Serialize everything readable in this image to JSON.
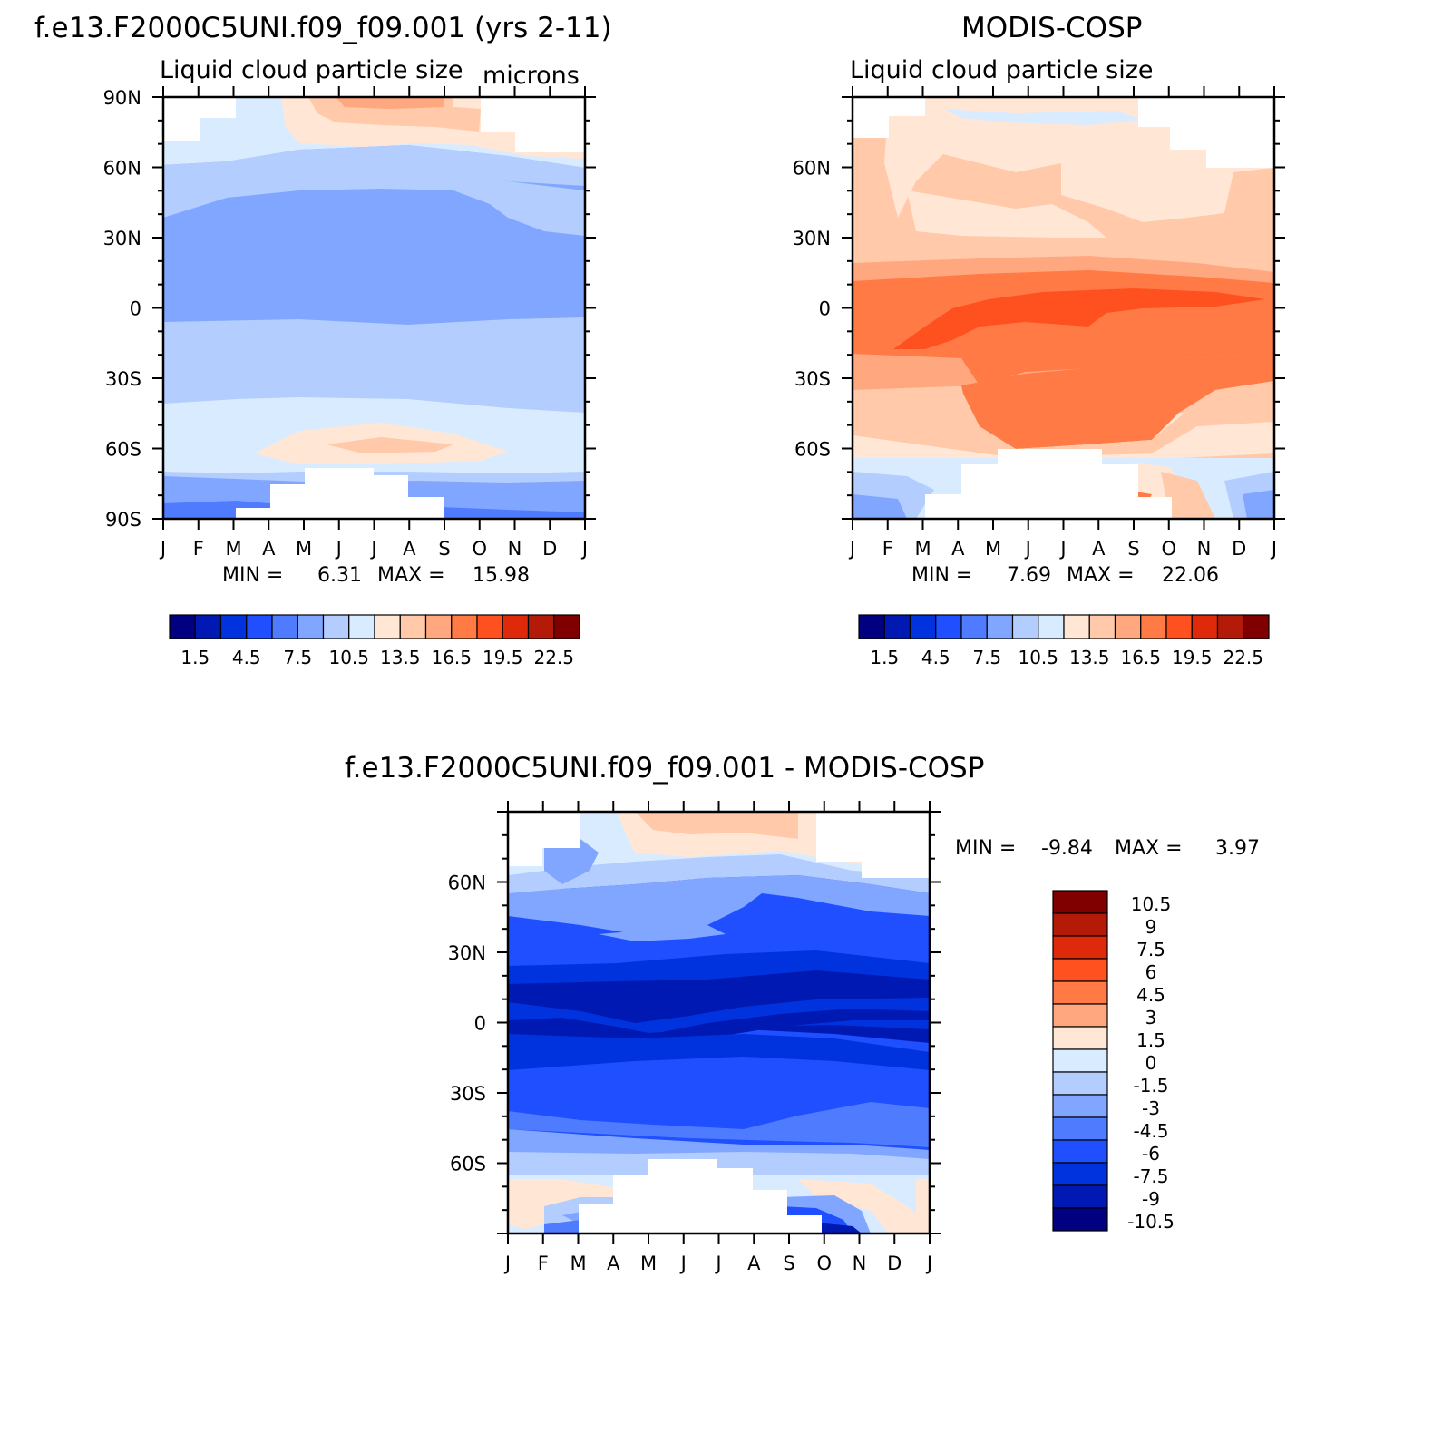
{
  "chart_data": [
    {
      "type": "heatmap",
      "panel": "model",
      "title": "f.e13.F2000C5UNI.f09_f09.001 (yrs 2-11)",
      "subtitle": "Liquid cloud particle size",
      "units": "microns",
      "x_ticks": [
        "J",
        "F",
        "M",
        "A",
        "M",
        "J",
        "J",
        "A",
        "S",
        "O",
        "N",
        "D",
        "J"
      ],
      "y_ticks": [
        "90N",
        "60N",
        "30N",
        "0",
        "30S",
        "60S",
        "90S"
      ],
      "stats": {
        "min_label": "MIN =",
        "min": "6.31",
        "max_label": "MAX =",
        "max": "15.98"
      },
      "colorbar": {
        "labels": [
          "1.5",
          "4.5",
          "7.5",
          "10.5",
          "13.5",
          "16.5",
          "19.5",
          "22.5"
        ]
      }
    },
    {
      "type": "heatmap",
      "panel": "obs",
      "title": "MODIS-COSP",
      "subtitle": "Liquid cloud particle size",
      "x_ticks": [
        "J",
        "F",
        "M",
        "A",
        "M",
        "J",
        "J",
        "A",
        "S",
        "O",
        "N",
        "D",
        "J"
      ],
      "y_ticks": [
        "60N",
        "30N",
        "0",
        "30S",
        "60S"
      ],
      "stats": {
        "min_label": "MIN =",
        "min": "7.69",
        "max_label": "MAX =",
        "max": "22.06"
      },
      "colorbar": {
        "labels": [
          "1.5",
          "4.5",
          "7.5",
          "10.5",
          "13.5",
          "16.5",
          "19.5",
          "22.5"
        ]
      }
    },
    {
      "type": "heatmap",
      "panel": "diff",
      "title": "f.e13.F2000C5UNI.f09_f09.001 - MODIS-COSP",
      "x_ticks": [
        "J",
        "F",
        "M",
        "A",
        "M",
        "J",
        "J",
        "A",
        "S",
        "O",
        "N",
        "D",
        "J"
      ],
      "y_ticks": [
        "60N",
        "30N",
        "0",
        "30S",
        "60S"
      ],
      "stats": {
        "min_label": "MIN =",
        "min": "-9.84",
        "max_label": "MAX =",
        "max": "3.97"
      },
      "colorbar": {
        "labels": [
          "10.5",
          "9",
          "7.5",
          "6",
          "4.5",
          "3",
          "1.5",
          "0",
          "-1.5",
          "-3",
          "-4.5",
          "-6",
          "-7.5",
          "-9",
          "-10.5"
        ]
      }
    }
  ],
  "colors": {
    "abs_scale": [
      "#000080",
      "#0019b3",
      "#0033dd",
      "#1f4fff",
      "#4f7bff",
      "#80a6ff",
      "#b3cdff",
      "#d9ebff",
      "#ffe6d5",
      "#ffc9aa",
      "#ffa77f",
      "#ff7a45",
      "#ff5020",
      "#de2a0b",
      "#b31a08",
      "#800000"
    ],
    "diff_scale": [
      "#000080",
      "#0019b3",
      "#0033dd",
      "#1f4fff",
      "#4f7bff",
      "#80a6ff",
      "#b3cdff",
      "#d9ebff",
      "#ffe6d5",
      "#ffa77f",
      "#ff7a45",
      "#ff5020",
      "#de2a0b",
      "#b31a08",
      "#800000"
    ]
  }
}
